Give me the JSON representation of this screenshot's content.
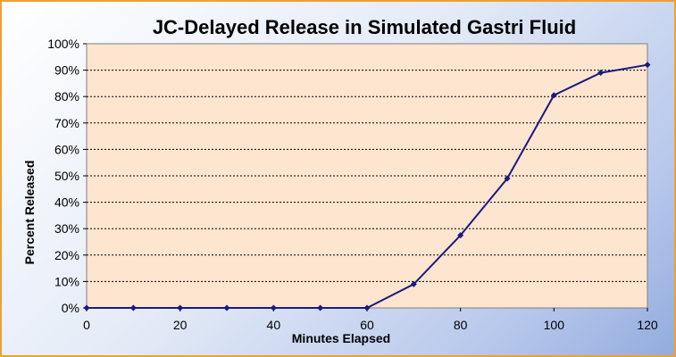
{
  "chart_data": {
    "type": "line",
    "title": "JC-Delayed Release in Simulated Gastri Fluid",
    "xlabel": "Minutes Elapsed",
    "ylabel": "Percent Released",
    "xlim": [
      0,
      120
    ],
    "ylim": [
      0,
      100
    ],
    "x_ticks": [
      "0",
      "20",
      "40",
      "60",
      "80",
      "100",
      "120"
    ],
    "y_ticks": [
      "0%",
      "10%",
      "20%",
      "30%",
      "40%",
      "50%",
      "60%",
      "70%",
      "80%",
      "90%",
      "100%"
    ],
    "grid": "horizontal dashed",
    "legend": "none",
    "series": [
      {
        "x": [
          0,
          10,
          20,
          30,
          40,
          50,
          60,
          70,
          80,
          90,
          100,
          110,
          120
        ],
        "y": [
          0,
          0,
          0,
          0,
          0,
          0,
          0,
          9,
          27.5,
          49,
          80.5,
          89,
          92
        ],
        "color": "#1a1a80"
      }
    ],
    "plot_background": "#fde5cf",
    "frame_border": "#f0a030"
  }
}
